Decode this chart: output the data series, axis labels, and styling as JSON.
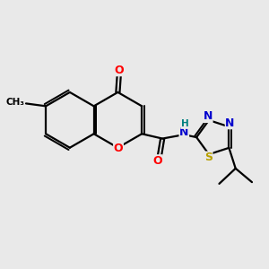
{
  "bg_color": "#e9e9e9",
  "bond_color": "#000000",
  "bond_width": 1.6,
  "atom_colors": {
    "O_red": "#ff0000",
    "N_blue": "#0000cd",
    "S_yellow": "#b8a000",
    "C_black": "#000000",
    "H_teal": "#008080"
  },
  "figsize": [
    3.0,
    3.0
  ],
  "dpi": 100,
  "xlim": [
    0,
    10
  ],
  "ylim": [
    0,
    10
  ]
}
